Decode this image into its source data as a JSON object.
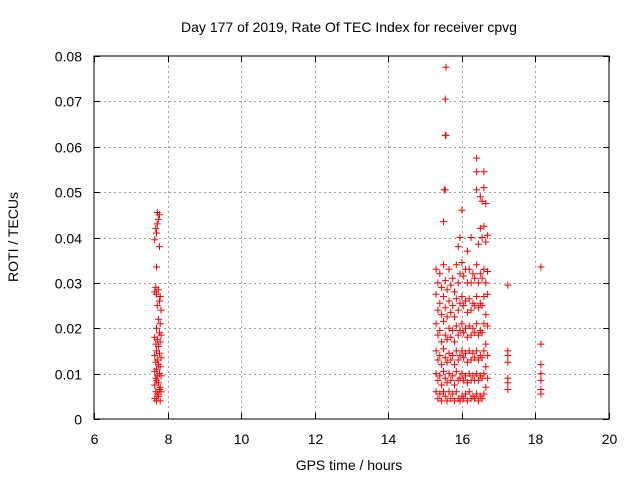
{
  "chart_data": {
    "type": "scatter",
    "title": "Day 177 of 2019, Rate Of TEC Index for receiver cpvg",
    "xlabel": "GPS time / hours",
    "ylabel": "ROTI / TECUs",
    "xlim": [
      6,
      20
    ],
    "ylim": [
      0,
      0.08
    ],
    "xticks": [
      6,
      8,
      10,
      12,
      14,
      16,
      18,
      20
    ],
    "yticks": [
      0,
      0.01,
      0.02,
      0.03,
      0.04,
      0.05,
      0.06,
      0.07,
      0.08
    ],
    "xtick_labels": [
      "6",
      "8",
      "10",
      "12",
      "14",
      "16",
      "18",
      "20"
    ],
    "ytick_labels": [
      "0",
      "0.01",
      "0.02",
      "0.03",
      "0.04",
      "0.05",
      "0.06",
      "0.07",
      "0.08"
    ],
    "grid": true,
    "marker": "+",
    "color": "#ff0000",
    "series": [
      {
        "name": "ROTI",
        "points": [
          [
            7.65,
            0.0045
          ],
          [
            7.65,
            0.0075
          ],
          [
            7.65,
            0.0105
          ],
          [
            7.65,
            0.014
          ],
          [
            7.65,
            0.018
          ],
          [
            7.65,
            0.028
          ],
          [
            7.65,
            0.0395
          ],
          [
            7.68,
            0.006
          ],
          [
            7.68,
            0.009
          ],
          [
            7.68,
            0.0125
          ],
          [
            7.68,
            0.0165
          ],
          [
            7.68,
            0.029
          ],
          [
            7.68,
            0.042
          ],
          [
            7.7,
            0.004
          ],
          [
            7.7,
            0.0085
          ],
          [
            7.7,
            0.011
          ],
          [
            7.7,
            0.015
          ],
          [
            7.7,
            0.02
          ],
          [
            7.7,
            0.0275
          ],
          [
            7.7,
            0.0335
          ],
          [
            7.7,
            0.041
          ],
          [
            7.72,
            0.0055
          ],
          [
            7.72,
            0.0095
          ],
          [
            7.72,
            0.013
          ],
          [
            7.72,
            0.0175
          ],
          [
            7.72,
            0.025
          ],
          [
            7.72,
            0.043
          ],
          [
            7.72,
            0.0455
          ],
          [
            7.75,
            0.005
          ],
          [
            7.75,
            0.008
          ],
          [
            7.75,
            0.012
          ],
          [
            7.75,
            0.016
          ],
          [
            7.75,
            0.022
          ],
          [
            7.75,
            0.0285
          ],
          [
            7.75,
            0.044
          ],
          [
            7.78,
            0.0065
          ],
          [
            7.78,
            0.01
          ],
          [
            7.78,
            0.0145
          ],
          [
            7.78,
            0.019
          ],
          [
            7.78,
            0.026
          ],
          [
            7.78,
            0.038
          ],
          [
            7.78,
            0.045
          ],
          [
            7.8,
            0.004
          ],
          [
            7.8,
            0.007
          ],
          [
            7.8,
            0.0115
          ],
          [
            7.8,
            0.017
          ],
          [
            7.8,
            0.021
          ],
          [
            7.8,
            0.027
          ],
          [
            7.82,
            0.006
          ],
          [
            7.82,
            0.0095
          ],
          [
            7.82,
            0.0135
          ],
          [
            7.82,
            0.0185
          ],
          [
            7.82,
            0.024
          ],
          [
            15.3,
            0.006
          ],
          [
            15.3,
            0.01
          ],
          [
            15.3,
            0.015
          ],
          [
            15.3,
            0.021
          ],
          [
            15.3,
            0.0275
          ],
          [
            15.3,
            0.033
          ],
          [
            15.35,
            0.0045
          ],
          [
            15.35,
            0.0085
          ],
          [
            15.35,
            0.013
          ],
          [
            15.35,
            0.0185
          ],
          [
            15.35,
            0.024
          ],
          [
            15.35,
            0.03
          ],
          [
            15.4,
            0.0055
          ],
          [
            15.4,
            0.0095
          ],
          [
            15.4,
            0.014
          ],
          [
            15.4,
            0.0195
          ],
          [
            15.4,
            0.0255
          ],
          [
            15.4,
            0.032
          ],
          [
            15.45,
            0.004
          ],
          [
            15.45,
            0.0075
          ],
          [
            15.45,
            0.012
          ],
          [
            15.45,
            0.017
          ],
          [
            15.45,
            0.023
          ],
          [
            15.45,
            0.029
          ],
          [
            15.5,
            0.006
          ],
          [
            15.5,
            0.0105
          ],
          [
            15.5,
            0.0155
          ],
          [
            15.5,
            0.0215
          ],
          [
            15.5,
            0.027
          ],
          [
            15.5,
            0.034
          ],
          [
            15.5,
            0.0435
          ],
          [
            15.52,
            0.0505
          ],
          [
            15.55,
            0.0505
          ],
          [
            15.55,
            0.0625
          ],
          [
            15.55,
            0.0705
          ],
          [
            15.57,
            0.0775
          ],
          [
            15.57,
            0.0625
          ],
          [
            15.55,
            0.005
          ],
          [
            15.55,
            0.009
          ],
          [
            15.55,
            0.0135
          ],
          [
            15.55,
            0.0185
          ],
          [
            15.55,
            0.0245
          ],
          [
            15.55,
            0.0305
          ],
          [
            15.6,
            0.004
          ],
          [
            15.6,
            0.008
          ],
          [
            15.6,
            0.0125
          ],
          [
            15.6,
            0.0175
          ],
          [
            15.6,
            0.0225
          ],
          [
            15.6,
            0.0285
          ],
          [
            15.65,
            0.006
          ],
          [
            15.65,
            0.01
          ],
          [
            15.65,
            0.0145
          ],
          [
            15.65,
            0.02
          ],
          [
            15.65,
            0.026
          ],
          [
            15.65,
            0.033
          ],
          [
            15.7,
            0.0045
          ],
          [
            15.7,
            0.0085
          ],
          [
            15.7,
            0.013
          ],
          [
            15.7,
            0.018
          ],
          [
            15.7,
            0.0235
          ],
          [
            15.7,
            0.0295
          ],
          [
            15.75,
            0.0055
          ],
          [
            15.75,
            0.0095
          ],
          [
            15.75,
            0.014
          ],
          [
            15.75,
            0.0195
          ],
          [
            15.75,
            0.025
          ],
          [
            15.75,
            0.031
          ],
          [
            15.8,
            0.004
          ],
          [
            15.8,
            0.0075
          ],
          [
            15.8,
            0.012
          ],
          [
            15.8,
            0.017
          ],
          [
            15.8,
            0.0225
          ],
          [
            15.8,
            0.028
          ],
          [
            15.85,
            0.006
          ],
          [
            15.85,
            0.0105
          ],
          [
            15.85,
            0.015
          ],
          [
            15.85,
            0.0205
          ],
          [
            15.85,
            0.0265
          ],
          [
            15.85,
            0.034
          ],
          [
            15.9,
            0.0045
          ],
          [
            15.9,
            0.0085
          ],
          [
            15.9,
            0.013
          ],
          [
            15.9,
            0.0185
          ],
          [
            15.9,
            0.024
          ],
          [
            15.9,
            0.03
          ],
          [
            15.9,
            0.038
          ],
          [
            15.95,
            0.004
          ],
          [
            15.95,
            0.009
          ],
          [
            15.95,
            0.014
          ],
          [
            15.95,
            0.0195
          ],
          [
            15.95,
            0.0255
          ],
          [
            15.95,
            0.032
          ],
          [
            15.95,
            0.04
          ],
          [
            16.0,
            0.005
          ],
          [
            16.0,
            0.01
          ],
          [
            16.0,
            0.015
          ],
          [
            16.0,
            0.021
          ],
          [
            16.0,
            0.027
          ],
          [
            16.0,
            0.0345
          ],
          [
            16.0,
            0.046
          ],
          [
            16.05,
            0.0045
          ],
          [
            16.05,
            0.0085
          ],
          [
            16.05,
            0.0135
          ],
          [
            16.05,
            0.019
          ],
          [
            16.05,
            0.025
          ],
          [
            16.05,
            0.0315
          ],
          [
            16.1,
            0.0055
          ],
          [
            16.1,
            0.0095
          ],
          [
            16.1,
            0.0145
          ],
          [
            16.1,
            0.02
          ],
          [
            16.1,
            0.026
          ],
          [
            16.1,
            0.033
          ],
          [
            16.15,
            0.004
          ],
          [
            16.15,
            0.008
          ],
          [
            16.15,
            0.0125
          ],
          [
            16.15,
            0.018
          ],
          [
            16.15,
            0.0235
          ],
          [
            16.15,
            0.03
          ],
          [
            16.15,
            0.037
          ],
          [
            16.2,
            0.006
          ],
          [
            16.2,
            0.01
          ],
          [
            16.2,
            0.015
          ],
          [
            16.2,
            0.0205
          ],
          [
            16.2,
            0.0265
          ],
          [
            16.2,
            0.033
          ],
          [
            16.25,
            0.0045
          ],
          [
            16.25,
            0.0085
          ],
          [
            16.25,
            0.013
          ],
          [
            16.25,
            0.0185
          ],
          [
            16.25,
            0.024
          ],
          [
            16.25,
            0.03
          ],
          [
            16.25,
            0.04
          ],
          [
            16.3,
            0.005
          ],
          [
            16.3,
            0.0095
          ],
          [
            16.3,
            0.0145
          ],
          [
            16.3,
            0.02
          ],
          [
            16.3,
            0.0255
          ],
          [
            16.3,
            0.032
          ],
          [
            16.35,
            0.0045
          ],
          [
            16.35,
            0.0085
          ],
          [
            16.35,
            0.0135
          ],
          [
            16.35,
            0.019
          ],
          [
            16.35,
            0.025
          ],
          [
            16.35,
            0.031
          ],
          [
            16.4,
            0.0055
          ],
          [
            16.4,
            0.01
          ],
          [
            16.4,
            0.015
          ],
          [
            16.4,
            0.021
          ],
          [
            16.4,
            0.027
          ],
          [
            16.4,
            0.034
          ],
          [
            16.4,
            0.0505
          ],
          [
            16.4,
            0.0545
          ],
          [
            16.4,
            0.0575
          ],
          [
            16.45,
            0.004
          ],
          [
            16.45,
            0.0085
          ],
          [
            16.45,
            0.013
          ],
          [
            16.45,
            0.0185
          ],
          [
            16.45,
            0.0245
          ],
          [
            16.45,
            0.03
          ],
          [
            16.45,
            0.0385
          ],
          [
            16.5,
            0.005
          ],
          [
            16.5,
            0.0095
          ],
          [
            16.5,
            0.014
          ],
          [
            16.5,
            0.0195
          ],
          [
            16.5,
            0.0255
          ],
          [
            16.5,
            0.032
          ],
          [
            16.5,
            0.042
          ],
          [
            16.5,
            0.049
          ],
          [
            16.55,
            0.0045
          ],
          [
            16.55,
            0.009
          ],
          [
            16.55,
            0.0135
          ],
          [
            16.55,
            0.019
          ],
          [
            16.55,
            0.025
          ],
          [
            16.55,
            0.031
          ],
          [
            16.55,
            0.04
          ],
          [
            16.55,
            0.048
          ],
          [
            16.6,
            0.0055
          ],
          [
            16.6,
            0.01
          ],
          [
            16.6,
            0.015
          ],
          [
            16.6,
            0.021
          ],
          [
            16.6,
            0.027
          ],
          [
            16.6,
            0.033
          ],
          [
            16.6,
            0.0425
          ],
          [
            16.6,
            0.051
          ],
          [
            16.6,
            0.0545
          ],
          [
            16.65,
            0.007
          ],
          [
            16.65,
            0.0115
          ],
          [
            16.65,
            0.0165
          ],
          [
            16.65,
            0.023
          ],
          [
            16.65,
            0.03
          ],
          [
            16.65,
            0.039
          ],
          [
            16.65,
            0.0475
          ],
          [
            16.7,
            0.009
          ],
          [
            16.7,
            0.014
          ],
          [
            16.7,
            0.0205
          ],
          [
            16.7,
            0.0275
          ],
          [
            16.7,
            0.0325
          ],
          [
            16.7,
            0.0405
          ],
          [
            17.25,
            0.0065
          ],
          [
            17.25,
            0.008
          ],
          [
            17.25,
            0.009
          ],
          [
            17.25,
            0.0125
          ],
          [
            17.25,
            0.014
          ],
          [
            17.25,
            0.015
          ],
          [
            17.25,
            0.0295
          ],
          [
            18.15,
            0.0055
          ],
          [
            18.15,
            0.0065
          ],
          [
            18.15,
            0.0085
          ],
          [
            18.15,
            0.01
          ],
          [
            18.15,
            0.012
          ],
          [
            18.15,
            0.0165
          ],
          [
            18.15,
            0.0335
          ]
        ]
      }
    ]
  }
}
